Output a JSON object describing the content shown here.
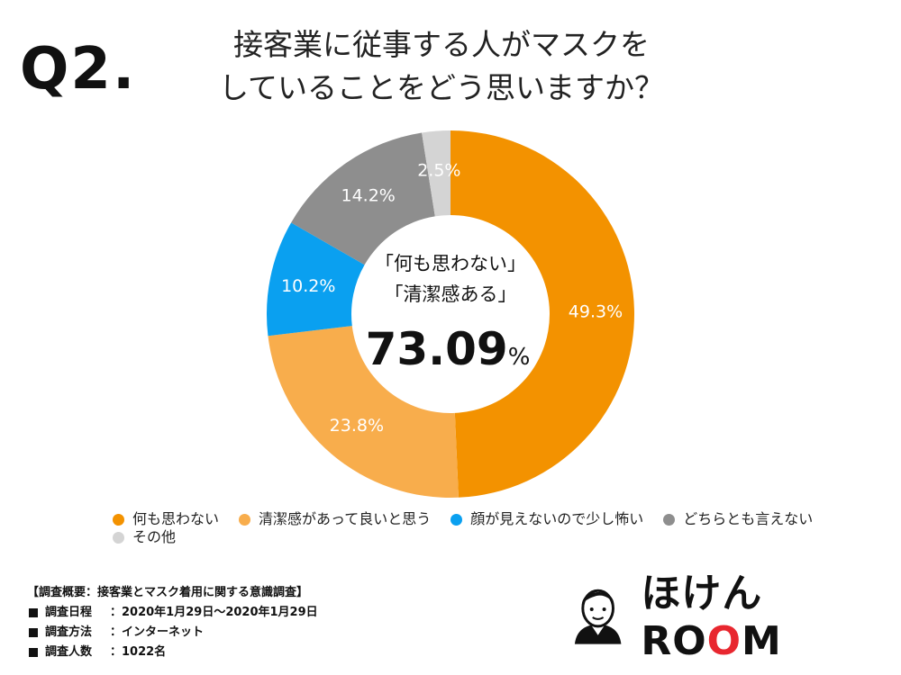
{
  "header": {
    "question": "Q2.",
    "title_line1": "接客業に従事する人がマスクを",
    "title_line2": "していることをどう思いますか？"
  },
  "center": {
    "line1": "「何も思わない」",
    "line2": "「清潔感ある」",
    "value": "73.09",
    "unit": "%"
  },
  "chart_data": {
    "type": "pie",
    "variant": "donut",
    "categories": [
      "何も思わない",
      "清潔感があって良いと思う",
      "顔が見えないので少し怖い",
      "どちらとも言えない",
      "その他"
    ],
    "values": [
      49.3,
      23.8,
      10.2,
      14.2,
      2.5
    ],
    "data_labels": [
      "49.3%",
      "23.8%",
      "10.2%",
      "14.2%",
      "2.5%"
    ],
    "colors": [
      "#f39200",
      "#f8ad4c",
      "#0aa0f0",
      "#8e8e8e",
      "#d4d4d4"
    ],
    "label_colors": [
      "#ffffff",
      "#ffffff",
      "#ffffff",
      "#ffffff",
      "#ffffff"
    ],
    "legend_placement": "bottom"
  },
  "survey": {
    "heading": "【調査概要：接客業とマスク着用に関する意識調査】",
    "rows": [
      {
        "key": "調査日程",
        "value": "：2020年1月29日〜2020年1月29日"
      },
      {
        "key": "調査方法",
        "value": "：インターネット"
      },
      {
        "key": "調査人数",
        "value": "：1022名"
      }
    ]
  },
  "logo": {
    "text_prefix": "ほけんRO",
    "text_red": "O",
    "text_suffix": "M",
    "icon": "person-avatar-icon"
  }
}
